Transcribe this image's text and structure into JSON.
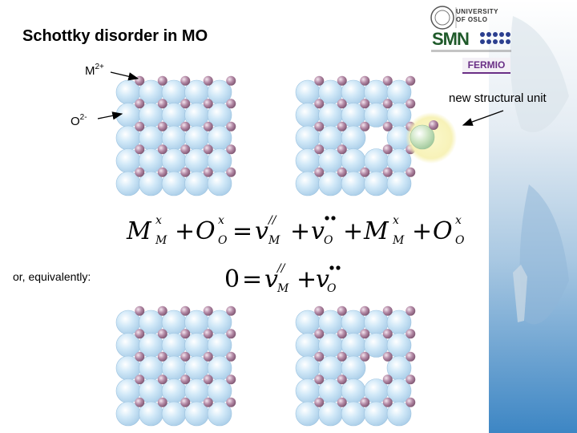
{
  "title": "Schottky disorder in MO",
  "labels": {
    "cation": "M",
    "cation_charge": "2+",
    "anion": "O",
    "anion_charge": "2-",
    "new_unit": "new structural unit",
    "equivalently": "or, equivalently:"
  },
  "logos": {
    "uio_line1": "UNIVERSITY",
    "uio_line2": "OF OSLO",
    "smn": "SMN",
    "fermio": "FERMIO"
  },
  "colors": {
    "anion": "#c5e2f6",
    "cation": "#a77e9a",
    "accent_bg": "#dbe7f1",
    "new_unit_glow": "#faf7c9",
    "new_unit_anion": "#bcdcb9"
  },
  "lattices": [
    {
      "id": "perfect-top",
      "vacancy": null
    },
    {
      "id": "defect-top",
      "vacancy": [
        2,
        3
      ]
    },
    {
      "id": "perfect-bottom",
      "vacancy": null
    },
    {
      "id": "defect-bottom",
      "vacancy": [
        2,
        3
      ]
    }
  ]
}
